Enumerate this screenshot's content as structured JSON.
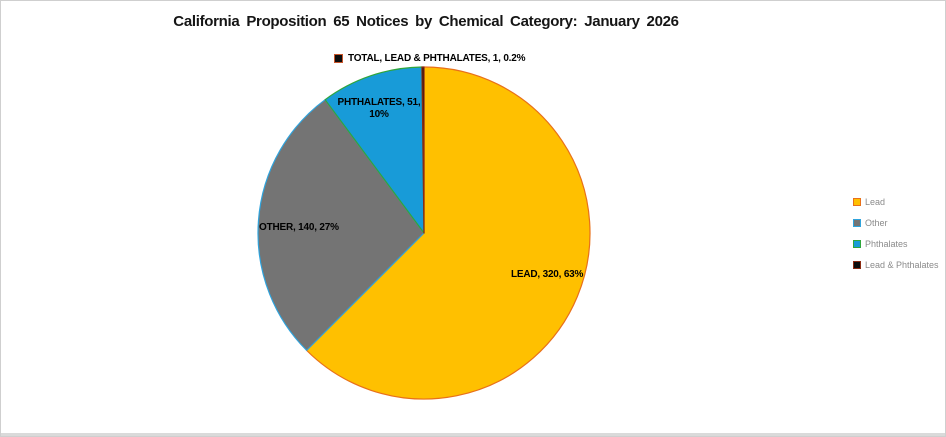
{
  "title": "California Proposition 65 Notices by Chemical Category: January 2026",
  "chart_data": {
    "type": "pie",
    "title": "California Proposition 65 Notices by Chemical Category: January 2026",
    "legend_position": "right",
    "start_angle_deg": 0,
    "direction": "clockwise",
    "slices": [
      {
        "category": "Lead",
        "value": 320,
        "percent": "63%",
        "fill": "#FFC000",
        "border": "#E8701A",
        "data_label": "LEAD, 320, 63%"
      },
      {
        "category": "Other",
        "value": 140,
        "percent": "27%",
        "fill": "#747474",
        "border": "#2FA3DC",
        "data_label": "OTHER, 140, 27%"
      },
      {
        "category": "Phthalates",
        "value": 51,
        "percent": "10%",
        "fill": "#189BD8",
        "border": "#2FA63C",
        "data_label": "PHTHALATES, 51, 10%"
      },
      {
        "category": "Lead & Phthalates",
        "value": 1,
        "percent": "0.2%",
        "fill": "#0D0D0D",
        "border": "#8A2A12",
        "data_label": "TOTAL, LEAD & PHTHALATES, 1, 0.2%"
      }
    ]
  },
  "labels": {
    "lead": "LEAD, 320, 63%",
    "other": "OTHER, 140, 27%",
    "phthalates_line1": "PHTHALATES, 51,",
    "phthalates_line2": "10%",
    "callout": "TOTAL, LEAD & PHTHALATES, 1, 0.2%"
  },
  "legend": {
    "items": [
      {
        "label": "Lead",
        "fill": "#FFC000",
        "border": "#E8701A"
      },
      {
        "label": "Other",
        "fill": "#747474",
        "border": "#2FA3DC"
      },
      {
        "label": "Phthalates",
        "fill": "#189BD8",
        "border": "#2FA63C"
      },
      {
        "label": "Lead & Phthalates",
        "fill": "#0D0D0D",
        "border": "#8A2A12"
      }
    ]
  }
}
